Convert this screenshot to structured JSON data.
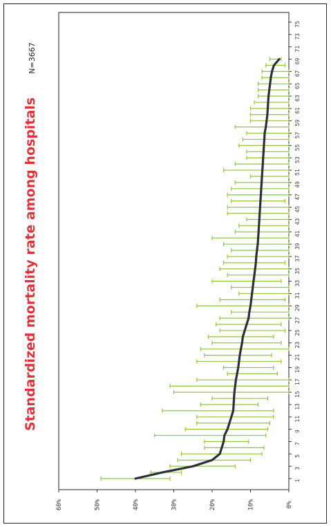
{
  "chart_data": {
    "type": "line",
    "title": "Standardized mortality rate among hospitals",
    "annotation": "N=3667",
    "xlabel": "",
    "ylabel": "",
    "ylim": [
      0,
      60
    ],
    "y_ticks": [
      "0%",
      "10%",
      "20%",
      "30%",
      "40%",
      "50%",
      "60%"
    ],
    "x_ticks": [
      "1",
      "3",
      "5",
      "7",
      "9",
      "11",
      "13",
      "15",
      "17",
      "19",
      "21",
      "23",
      "25",
      "27",
      "29",
      "31",
      "33",
      "35",
      "37",
      "39",
      "41",
      "43",
      "45",
      "47",
      "49",
      "51",
      "53",
      "55",
      "57",
      "59",
      "61",
      "63",
      "65",
      "67",
      "69",
      "71",
      "73",
      "75"
    ],
    "xlim": [
      1,
      75
    ],
    "grid": false,
    "line_color": "#2b3036",
    "error_bar_color": "#8dc63f",
    "series": [
      {
        "x": [
          1,
          2,
          3,
          4,
          5,
          6,
          7,
          8,
          9,
          10,
          11,
          12,
          13,
          14,
          15,
          16,
          17,
          18,
          19,
          20,
          21,
          22,
          23,
          24,
          25,
          26,
          27,
          28,
          29,
          30,
          31,
          32,
          33,
          34,
          35,
          36,
          37,
          38,
          39,
          40,
          41,
          42,
          43,
          44,
          45,
          46,
          47,
          48,
          49,
          50,
          51,
          52,
          53,
          54,
          55,
          56,
          57,
          58,
          59,
          60,
          61,
          62,
          63,
          64,
          65,
          66,
          67,
          68,
          69
        ],
        "values": [
          40,
          33,
          25,
          20,
          18,
          17.5,
          17,
          16.8,
          16,
          15.5,
          15,
          14.5,
          14.4,
          14.3,
          14.2,
          14,
          13.8,
          13.5,
          13.2,
          13,
          12.8,
          12.5,
          12.2,
          12,
          11.5,
          11,
          10.5,
          10.3,
          10,
          9.8,
          9.6,
          9.4,
          9.2,
          9,
          8.8,
          8.6,
          8.5,
          8.3,
          8.1,
          8,
          7.9,
          7.8,
          7.7,
          7.6,
          7.5,
          7.4,
          7.3,
          7.2,
          7.1,
          7,
          6.9,
          6.8,
          6.7,
          6.6,
          6.5,
          6.4,
          6.3,
          6,
          5.8,
          5.6,
          5.5,
          5.4,
          5.3,
          5.1,
          4.9,
          4.7,
          4.4,
          3.9,
          2.5
        ],
        "lower": [
          31,
          28,
          14,
          10,
          7,
          6.5,
          10.5,
          6,
          5.5,
          5,
          4,
          4,
          8,
          5.5,
          0,
          0,
          0,
          3,
          4,
          2,
          4.5,
          0,
          2,
          4,
          1,
          2,
          0,
          0,
          0,
          1,
          0,
          0,
          2,
          0,
          0,
          1,
          0,
          0,
          0,
          0,
          0,
          0,
          0,
          0,
          0,
          1,
          0,
          0,
          0,
          0,
          0,
          0,
          0,
          0,
          0,
          0,
          0,
          0,
          0,
          0,
          0,
          0,
          0,
          0,
          0,
          0,
          0,
          1,
          2
        ],
        "upper": [
          49,
          36,
          31,
          29,
          28,
          22,
          22,
          35,
          27,
          24,
          24,
          33,
          23,
          20,
          30,
          31,
          24,
          16,
          17,
          24,
          22,
          23,
          20,
          21,
          18,
          19,
          18,
          15,
          24,
          18,
          13,
          15,
          20,
          16,
          18,
          17,
          16,
          15,
          17,
          20,
          14,
          13,
          11,
          16,
          16,
          15,
          16,
          15,
          14,
          10,
          17,
          14,
          11,
          11,
          13,
          12,
          11,
          14,
          10,
          10,
          10,
          9,
          8,
          8,
          8,
          7,
          7,
          6,
          5
        ]
      }
    ]
  }
}
